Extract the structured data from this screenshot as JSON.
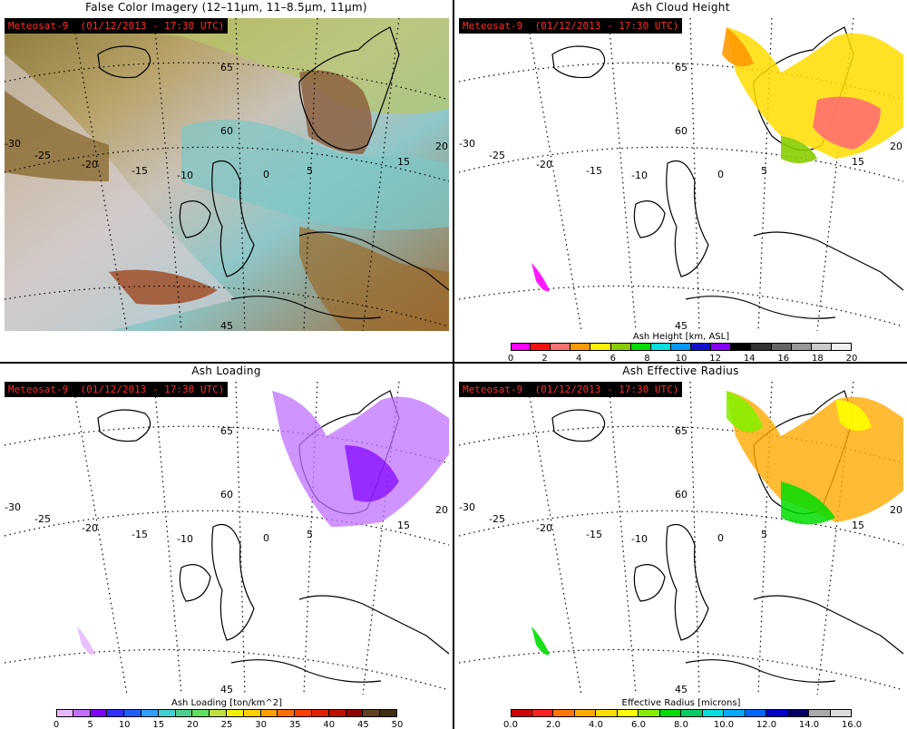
{
  "panels": {
    "false_color": {
      "title": "False Color Imagery (12–11μm, 11–8.5μm, 11μm)"
    },
    "ash_height": {
      "title": "Ash Cloud Height",
      "colorbar_title": "Ash Height [km, ASL]"
    },
    "ash_loading": {
      "title": "Ash Loading",
      "colorbar_title": "Ash Loading [ton/km^2]"
    },
    "ash_radius": {
      "title": "Ash Effective Radius",
      "colorbar_title": "Effective Radius [microns]"
    }
  },
  "satellite_label": "Meteosat-9  (01/12/2013 - 17:30 UTC)",
  "map_labels": {
    "lat": [
      "65",
      "60",
      "45"
    ],
    "lon": [
      "-30",
      "-25",
      "-20",
      "-15",
      "-10",
      "0",
      "5",
      "15",
      "20"
    ]
  },
  "colorbars": {
    "height": {
      "labels": [
        "0",
        "2",
        "4",
        "6",
        "8",
        "10",
        "12",
        "14",
        "16",
        "18",
        "20"
      ],
      "colors": [
        "#ff00ff",
        "#ff1010",
        "#ff7070",
        "#ff9900",
        "#ffee00",
        "#88cc00",
        "#00dd00",
        "#00dddd",
        "#0099ff",
        "#1010cc",
        "#8800ff",
        "#000000",
        "#333333",
        "#666666",
        "#999999",
        "#cccccc",
        "#eeeeee"
      ]
    },
    "loading": {
      "labels": [
        "0",
        "5",
        "10",
        "15",
        "20",
        "25",
        "30",
        "35",
        "40",
        "45",
        "50"
      ],
      "colors": [
        "#e8b8ff",
        "#c070ff",
        "#8000ff",
        "#3030ff",
        "#2060ff",
        "#30a0ff",
        "#40d0d0",
        "#50d090",
        "#60e060",
        "#c0e040",
        "#f0f000",
        "#ffd000",
        "#ffa000",
        "#ff7000",
        "#ff4000",
        "#e02000",
        "#c01000",
        "#900000",
        "#604020",
        "#403010"
      ]
    },
    "radius": {
      "labels": [
        "0.0",
        "2.0",
        "4.0",
        "6.0",
        "8.0",
        "10.0",
        "12.0",
        "14.0",
        "16.0"
      ],
      "colors": [
        "#cc0000",
        "#ff2020",
        "#ff7700",
        "#ffaa00",
        "#ffdd00",
        "#ffff00",
        "#88ee00",
        "#00dd00",
        "#00cc66",
        "#00dddd",
        "#00aaff",
        "#0066ff",
        "#0000cc",
        "#000066",
        "#aaaaaa",
        "#dddddd"
      ]
    }
  }
}
